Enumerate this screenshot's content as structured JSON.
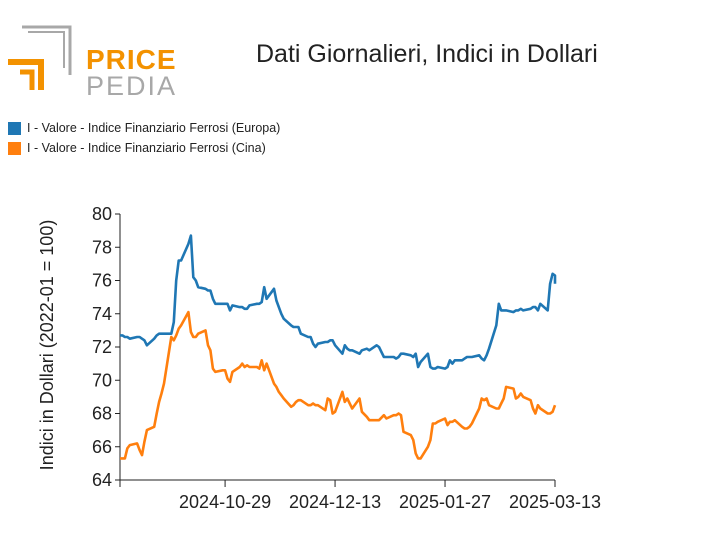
{
  "logo": {
    "line1": "PRICE",
    "line2": "PEDIA",
    "colors": {
      "orange": "#f39200",
      "gray": "#a8a8a8"
    }
  },
  "title": "Dati Giornalieri, Indici in Dollari",
  "colors": {
    "europa": "#1f77b4",
    "cina": "#ff7f0e"
  },
  "legend": [
    {
      "label": "I - Valore - Indice Finanziario Ferrosi (Europa)",
      "color": "#1f77b4"
    },
    {
      "label": "I - Valore - Indice Finanziario Ferrosi (Cina)",
      "color": "#ff7f0e"
    }
  ],
  "chart_data": {
    "type": "line",
    "title": "Dati Giornalieri, Indici in Dollari",
    "xlabel": "",
    "ylabel": "Indici in Dollari (2022-01 = 100)",
    "ylim": [
      64,
      80
    ],
    "yticks": [
      64,
      66,
      68,
      70,
      72,
      74,
      76,
      78,
      80
    ],
    "xlim": [
      "2024-09-16",
      "2025-03-13"
    ],
    "xticks": [
      "2024-10-29",
      "2024-12-13",
      "2025-01-27",
      "2025-03-13"
    ],
    "grid": false,
    "legend_position": "top-left",
    "series": [
      {
        "name": "I - Valore - Indice Finanziario Ferrosi (Europa)",
        "color": "#1f77b4",
        "points": [
          [
            "2024-09-16",
            72.7
          ],
          [
            "2024-09-17",
            72.7
          ],
          [
            "2024-09-18",
            72.6
          ],
          [
            "2024-09-19",
            72.6
          ],
          [
            "2024-09-20",
            72.5
          ],
          [
            "2024-09-23",
            72.6
          ],
          [
            "2024-09-24",
            72.6
          ],
          [
            "2024-09-25",
            72.5
          ],
          [
            "2024-09-26",
            72.4
          ],
          [
            "2024-09-27",
            72.1
          ],
          [
            "2024-09-30",
            72.5
          ],
          [
            "2024-10-01",
            72.7
          ],
          [
            "2024-10-02",
            72.8
          ],
          [
            "2024-10-03",
            72.8
          ],
          [
            "2024-10-04",
            72.8
          ],
          [
            "2024-10-07",
            72.8
          ],
          [
            "2024-10-08",
            73.5
          ],
          [
            "2024-10-09",
            76.0
          ],
          [
            "2024-10-10",
            77.2
          ],
          [
            "2024-10-11",
            77.2
          ],
          [
            "2024-10-14",
            78.2
          ],
          [
            "2024-10-15",
            78.7
          ],
          [
            "2024-10-16",
            76.2
          ],
          [
            "2024-10-17",
            76.0
          ],
          [
            "2024-10-18",
            75.6
          ],
          [
            "2024-10-21",
            75.5
          ],
          [
            "2024-10-22",
            75.4
          ],
          [
            "2024-10-23",
            75.4
          ],
          [
            "2024-10-24",
            74.9
          ],
          [
            "2024-10-25",
            74.6
          ],
          [
            "2024-10-28",
            74.6
          ],
          [
            "2024-10-29",
            74.6
          ],
          [
            "2024-10-30",
            74.6
          ],
          [
            "2024-10-31",
            74.2
          ],
          [
            "2024-11-01",
            74.5
          ],
          [
            "2024-11-04",
            74.4
          ],
          [
            "2024-11-05",
            74.4
          ],
          [
            "2024-11-06",
            74.3
          ],
          [
            "2024-11-07",
            74.3
          ],
          [
            "2024-11-08",
            74.5
          ],
          [
            "2024-11-11",
            74.6
          ],
          [
            "2024-11-12",
            74.6
          ],
          [
            "2024-11-13",
            74.7
          ],
          [
            "2024-11-14",
            75.6
          ],
          [
            "2024-11-15",
            74.9
          ],
          [
            "2024-11-18",
            75.5
          ],
          [
            "2024-11-19",
            74.8
          ],
          [
            "2024-11-20",
            74.4
          ],
          [
            "2024-11-21",
            74.0
          ],
          [
            "2024-11-22",
            73.7
          ],
          [
            "2024-11-25",
            73.3
          ],
          [
            "2024-11-26",
            73.2
          ],
          [
            "2024-11-27",
            73.2
          ],
          [
            "2024-11-28",
            73.2
          ],
          [
            "2024-11-29",
            72.8
          ],
          [
            "2024-12-02",
            72.6
          ],
          [
            "2024-12-03",
            72.6
          ],
          [
            "2024-12-04",
            72.2
          ],
          [
            "2024-12-05",
            72.0
          ],
          [
            "2024-12-06",
            72.2
          ],
          [
            "2024-12-09",
            72.3
          ],
          [
            "2024-12-10",
            72.3
          ],
          [
            "2024-12-11",
            72.4
          ],
          [
            "2024-12-12",
            72.4
          ],
          [
            "2024-12-13",
            72.1
          ],
          [
            "2024-12-16",
            71.6
          ],
          [
            "2024-12-17",
            72.1
          ],
          [
            "2024-12-18",
            71.9
          ],
          [
            "2024-12-19",
            71.8
          ],
          [
            "2024-12-20",
            71.8
          ],
          [
            "2024-12-23",
            71.6
          ],
          [
            "2024-12-24",
            71.8
          ],
          [
            "2024-12-26",
            71.9
          ],
          [
            "2024-12-27",
            71.8
          ],
          [
            "2024-12-30",
            72.1
          ],
          [
            "2024-12-31",
            72.0
          ],
          [
            "2025-01-02",
            71.4
          ],
          [
            "2025-01-03",
            71.4
          ],
          [
            "2025-01-06",
            71.4
          ],
          [
            "2025-01-07",
            71.3
          ],
          [
            "2025-01-08",
            71.4
          ],
          [
            "2025-01-09",
            71.6
          ],
          [
            "2025-01-10",
            71.6
          ],
          [
            "2025-01-13",
            71.5
          ],
          [
            "2025-01-14",
            71.4
          ],
          [
            "2025-01-15",
            71.6
          ],
          [
            "2025-01-16",
            70.8
          ],
          [
            "2025-01-17",
            71.1
          ],
          [
            "2025-01-20",
            71.6
          ],
          [
            "2025-01-21",
            70.8
          ],
          [
            "2025-01-22",
            70.7
          ],
          [
            "2025-01-23",
            70.7
          ],
          [
            "2025-01-24",
            70.8
          ],
          [
            "2025-01-27",
            70.7
          ],
          [
            "2025-01-28",
            70.8
          ],
          [
            "2025-01-29",
            71.2
          ],
          [
            "2025-01-30",
            71.0
          ],
          [
            "2025-01-31",
            71.2
          ],
          [
            "2025-02-03",
            71.2
          ],
          [
            "2025-02-04",
            71.3
          ],
          [
            "2025-02-05",
            71.4
          ],
          [
            "2025-02-06",
            71.4
          ],
          [
            "2025-02-07",
            71.4
          ],
          [
            "2025-02-10",
            71.5
          ],
          [
            "2025-02-11",
            71.3
          ],
          [
            "2025-02-12",
            71.2
          ],
          [
            "2025-02-13",
            71.5
          ],
          [
            "2025-02-14",
            71.9
          ],
          [
            "2025-02-17",
            73.3
          ],
          [
            "2025-02-18",
            74.6
          ],
          [
            "2025-02-19",
            74.2
          ],
          [
            "2025-02-20",
            74.2
          ],
          [
            "2025-02-21",
            74.2
          ],
          [
            "2025-02-24",
            74.1
          ],
          [
            "2025-02-25",
            74.2
          ],
          [
            "2025-02-26",
            74.2
          ],
          [
            "2025-02-27",
            74.3
          ],
          [
            "2025-02-28",
            74.2
          ],
          [
            "2025-03-03",
            74.3
          ],
          [
            "2025-03-04",
            74.4
          ],
          [
            "2025-03-05",
            74.4
          ],
          [
            "2025-03-06",
            74.2
          ],
          [
            "2025-03-07",
            74.6
          ],
          [
            "2025-03-10",
            74.2
          ],
          [
            "2025-03-11",
            75.8
          ],
          [
            "2025-03-12",
            76.4
          ],
          [
            "2025-03-13",
            76.3
          ],
          [
            "2025-03-14",
            76.2
          ],
          [
            "2025-03-15",
            75.8
          ],
          [
            "2025-03-16",
            75.8
          ]
        ]
      },
      {
        "name": "I - Valore - Indice Finanziario Ferrosi (Cina)",
        "color": "#ff7f0e",
        "points": [
          [
            "2024-09-16",
            65.3
          ],
          [
            "2024-09-17",
            65.3
          ],
          [
            "2024-09-18",
            65.3
          ],
          [
            "2024-09-19",
            65.9
          ],
          [
            "2024-09-20",
            66.1
          ],
          [
            "2024-09-23",
            66.2
          ],
          [
            "2024-09-24",
            65.8
          ],
          [
            "2024-09-25",
            65.5
          ],
          [
            "2024-09-26",
            66.3
          ],
          [
            "2024-09-27",
            67.0
          ],
          [
            "2024-09-30",
            67.2
          ],
          [
            "2024-10-01",
            68.0
          ],
          [
            "2024-10-02",
            68.7
          ],
          [
            "2024-10-03",
            69.2
          ],
          [
            "2024-10-04",
            69.8
          ],
          [
            "2024-10-07",
            72.6
          ],
          [
            "2024-10-08",
            72.4
          ],
          [
            "2024-10-09",
            72.7
          ],
          [
            "2024-10-10",
            73.1
          ],
          [
            "2024-10-11",
            73.3
          ],
          [
            "2024-10-14",
            74.1
          ],
          [
            "2024-10-15",
            72.9
          ],
          [
            "2024-10-16",
            72.6
          ],
          [
            "2024-10-17",
            72.6
          ],
          [
            "2024-10-18",
            72.8
          ],
          [
            "2024-10-21",
            73.0
          ],
          [
            "2024-10-22",
            72.1
          ],
          [
            "2024-10-23",
            71.8
          ],
          [
            "2024-10-24",
            70.7
          ],
          [
            "2024-10-25",
            70.5
          ],
          [
            "2024-10-28",
            70.6
          ],
          [
            "2024-10-29",
            70.6
          ],
          [
            "2024-10-30",
            70.1
          ],
          [
            "2024-10-31",
            69.9
          ],
          [
            "2024-11-01",
            70.5
          ],
          [
            "2024-11-04",
            70.8
          ],
          [
            "2024-11-05",
            71.0
          ],
          [
            "2024-11-06",
            70.8
          ],
          [
            "2024-11-07",
            70.9
          ],
          [
            "2024-11-08",
            70.8
          ],
          [
            "2024-11-11",
            70.8
          ],
          [
            "2024-11-12",
            70.7
          ],
          [
            "2024-11-13",
            71.2
          ],
          [
            "2024-11-14",
            70.6
          ],
          [
            "2024-11-15",
            71.0
          ],
          [
            "2024-11-18",
            69.8
          ],
          [
            "2024-11-19",
            69.6
          ],
          [
            "2024-11-20",
            69.3
          ],
          [
            "2024-11-21",
            69.1
          ],
          [
            "2024-11-22",
            68.9
          ],
          [
            "2024-11-25",
            68.4
          ],
          [
            "2024-11-26",
            68.5
          ],
          [
            "2024-11-27",
            68.7
          ],
          [
            "2024-11-28",
            68.8
          ],
          [
            "2024-11-29",
            68.8
          ],
          [
            "2024-12-02",
            68.5
          ],
          [
            "2024-12-03",
            68.5
          ],
          [
            "2024-12-04",
            68.6
          ],
          [
            "2024-12-05",
            68.5
          ],
          [
            "2024-12-06",
            68.5
          ],
          [
            "2024-12-09",
            68.2
          ],
          [
            "2024-12-10",
            68.9
          ],
          [
            "2024-12-11",
            68.8
          ],
          [
            "2024-12-12",
            68.0
          ],
          [
            "2024-12-13",
            68.1
          ],
          [
            "2024-12-16",
            69.3
          ],
          [
            "2024-12-17",
            68.7
          ],
          [
            "2024-12-18",
            68.9
          ],
          [
            "2024-12-19",
            68.6
          ],
          [
            "2024-12-20",
            68.3
          ],
          [
            "2024-12-23",
            68.9
          ],
          [
            "2024-12-24",
            68.1
          ],
          [
            "2024-12-26",
            67.8
          ],
          [
            "2024-12-27",
            67.6
          ],
          [
            "2024-12-30",
            67.6
          ],
          [
            "2024-12-31",
            67.6
          ],
          [
            "2025-01-02",
            67.9
          ],
          [
            "2025-01-03",
            67.7
          ],
          [
            "2025-01-06",
            67.9
          ],
          [
            "2025-01-07",
            67.9
          ],
          [
            "2025-01-08",
            68.0
          ],
          [
            "2025-01-09",
            67.9
          ],
          [
            "2025-01-10",
            66.9
          ],
          [
            "2025-01-13",
            66.7
          ],
          [
            "2025-01-14",
            66.4
          ],
          [
            "2025-01-15",
            65.6
          ],
          [
            "2025-01-16",
            65.3
          ],
          [
            "2025-01-17",
            65.3
          ],
          [
            "2025-01-20",
            66.0
          ],
          [
            "2025-01-21",
            66.4
          ],
          [
            "2025-01-22",
            67.4
          ],
          [
            "2025-01-23",
            67.4
          ],
          [
            "2025-01-24",
            67.5
          ],
          [
            "2025-01-27",
            67.7
          ],
          [
            "2025-01-28",
            67.3
          ],
          [
            "2025-01-29",
            67.5
          ],
          [
            "2025-01-30",
            67.5
          ],
          [
            "2025-01-31",
            67.6
          ],
          [
            "2025-02-03",
            67.2
          ],
          [
            "2025-02-04",
            67.1
          ],
          [
            "2025-02-05",
            67.1
          ],
          [
            "2025-02-06",
            67.2
          ],
          [
            "2025-02-07",
            67.4
          ],
          [
            "2025-02-10",
            68.3
          ],
          [
            "2025-02-11",
            68.9
          ],
          [
            "2025-02-12",
            68.8
          ],
          [
            "2025-02-13",
            68.9
          ],
          [
            "2025-02-14",
            68.5
          ],
          [
            "2025-02-17",
            68.3
          ],
          [
            "2025-02-18",
            68.3
          ],
          [
            "2025-02-19",
            68.6
          ],
          [
            "2025-02-20",
            68.9
          ],
          [
            "2025-02-21",
            69.6
          ],
          [
            "2025-02-24",
            69.5
          ],
          [
            "2025-02-25",
            68.9
          ],
          [
            "2025-02-26",
            69.0
          ],
          [
            "2025-02-27",
            69.2
          ],
          [
            "2025-02-28",
            69.0
          ],
          [
            "2025-03-03",
            68.8
          ],
          [
            "2025-03-04",
            68.3
          ],
          [
            "2025-03-05",
            68.0
          ],
          [
            "2025-03-06",
            68.5
          ],
          [
            "2025-03-07",
            68.3
          ],
          [
            "2025-03-10",
            68.0
          ],
          [
            "2025-03-11",
            68.0
          ],
          [
            "2025-03-12",
            68.1
          ],
          [
            "2025-03-13",
            68.5
          ]
        ]
      }
    ]
  }
}
